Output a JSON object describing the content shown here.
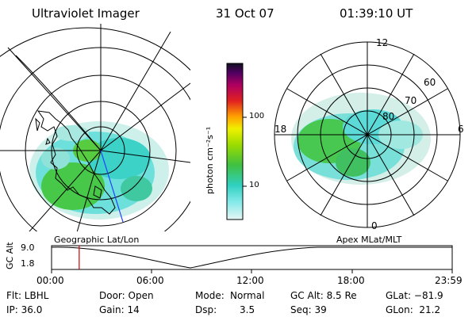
{
  "header": {
    "title": "Ultraviolet Imager",
    "date": "31 Oct 07",
    "time": "01:39:10 UT"
  },
  "colorbar": {
    "label": "photon cm⁻²s⁻¹",
    "ticks": [
      "100",
      "10"
    ]
  },
  "polar_plot": {
    "mlt_labels": {
      "top": "12",
      "left": "18",
      "right": "6",
      "bottom": "0"
    },
    "lat_labels": [
      "60",
      "70",
      "80"
    ]
  },
  "timeline": {
    "ylabel": "GC Alt",
    "yticks": [
      "9.0",
      "1.8"
    ],
    "left_title": "Geographic Lat/Lon",
    "right_title": "Apex MLat/MLT",
    "xticks": [
      "00:00",
      "06:00",
      "12:00",
      "18:00",
      "23:59"
    ],
    "current_time_fraction": 0.069
  },
  "info": {
    "flt": "Flt: LBHL",
    "ip": "IP: 36.0",
    "door": "Door: Open",
    "gain": "Gain: 14",
    "mode_label": "Mode:",
    "mode_value": "Normal",
    "dsp_label": "Dsp:",
    "dsp_value": "3.5",
    "gcalt": "GC Alt: 8.5 Re",
    "seq": "Seq: 39",
    "glat": "GLat: −81.9",
    "glon": "GLon:  21.2"
  },
  "colors": {
    "red_marker": "#d00000",
    "polar_line": "#2040ff"
  }
}
